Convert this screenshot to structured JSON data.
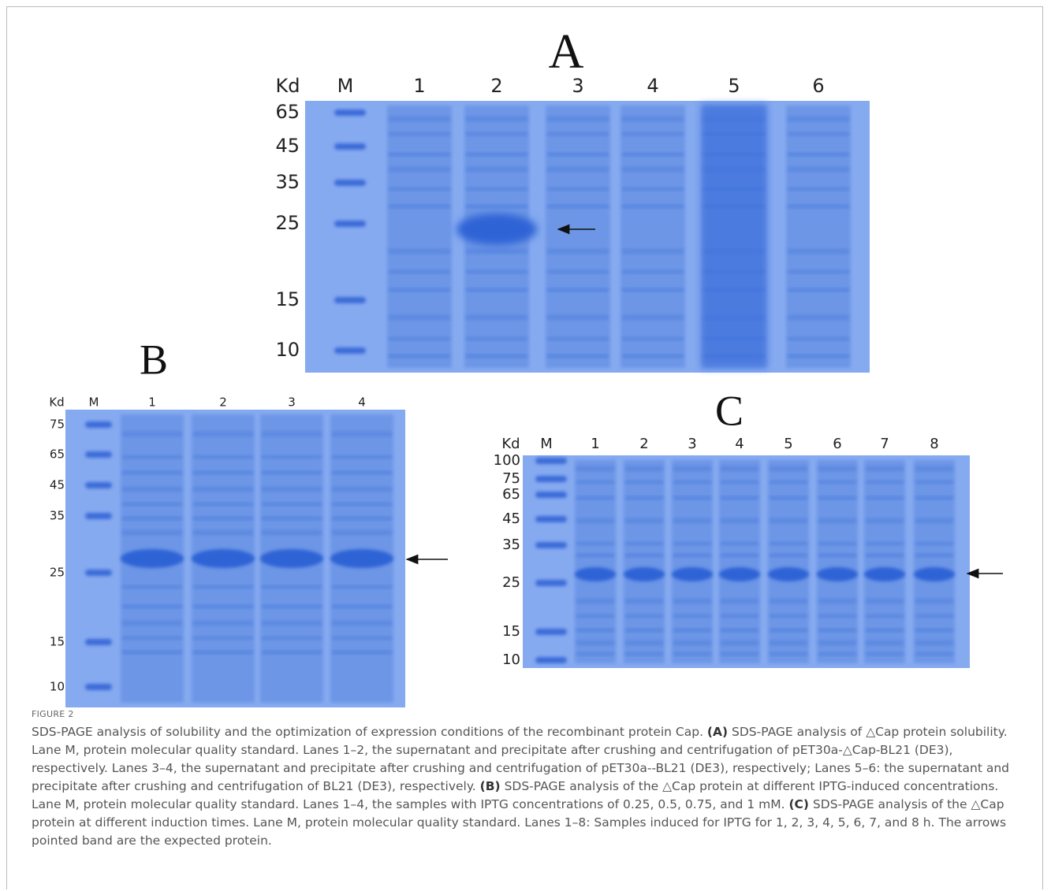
{
  "panels": [
    {
      "letter": "A",
      "unit": "Kd",
      "marker": "M",
      "lanes": [
        "1",
        "2",
        "3",
        "4",
        "5",
        "6"
      ],
      "sizes": [
        "65",
        "45",
        "35",
        "25",
        "15",
        "10"
      ]
    },
    {
      "letter": "B",
      "unit": "Kd",
      "marker": "M",
      "lanes": [
        "1",
        "2",
        "3",
        "4"
      ],
      "sizes": [
        "75",
        "65",
        "45",
        "35",
        "25",
        "15",
        "10"
      ]
    },
    {
      "letter": "C",
      "unit": "Kd",
      "marker": "M",
      "lanes": [
        "1",
        "2",
        "3",
        "4",
        "5",
        "6",
        "7",
        "8"
      ],
      "sizes": [
        "100",
        "75",
        "65",
        "45",
        "35",
        "25",
        "15",
        "10"
      ]
    }
  ],
  "caption": {
    "label": "FIGURE 2",
    "segments": [
      {
        "text": "SDS-PAGE analysis of solubility and the optimization of expression conditions of the recombinant protein Cap. ",
        "bold": false
      },
      {
        "text": "(A)",
        "bold": true
      },
      {
        "text": " SDS-PAGE analysis of △Cap protein solubility. Lane M, protein molecular quality standard. Lanes 1–2, the supernatant and precipitate after crushing and centrifugation of pET30a-△Cap-BL21 (DE3), respectively. Lanes 3–4, the supernatant and precipitate after crushing and centrifugation of pET30a--BL21 (DE3), respectively; Lanes 5–6: the supernatant and precipitate after crushing and centrifugation of BL21 (DE3), respectively. ",
        "bold": false
      },
      {
        "text": "(B)",
        "bold": true
      },
      {
        "text": " SDS-PAGE analysis of the △Cap protein at different IPTG-induced concentrations. Lane M, protein molecular quality standard. Lanes 1–4, the samples with IPTG concentrations of 0.25, 0.5, 0.75, and 1 mM. ",
        "bold": false
      },
      {
        "text": "(C)",
        "bold": true
      },
      {
        "text": " SDS-PAGE analysis of the △Cap protein at different induction times. Lane M, protein molecular quality standard. Lanes 1–8: Samples induced for IPTG for 1, 2, 3, 4, 5, 6, 7, and 8 h. The arrows pointed band are the expected protein.",
        "bold": false
      }
    ]
  }
}
